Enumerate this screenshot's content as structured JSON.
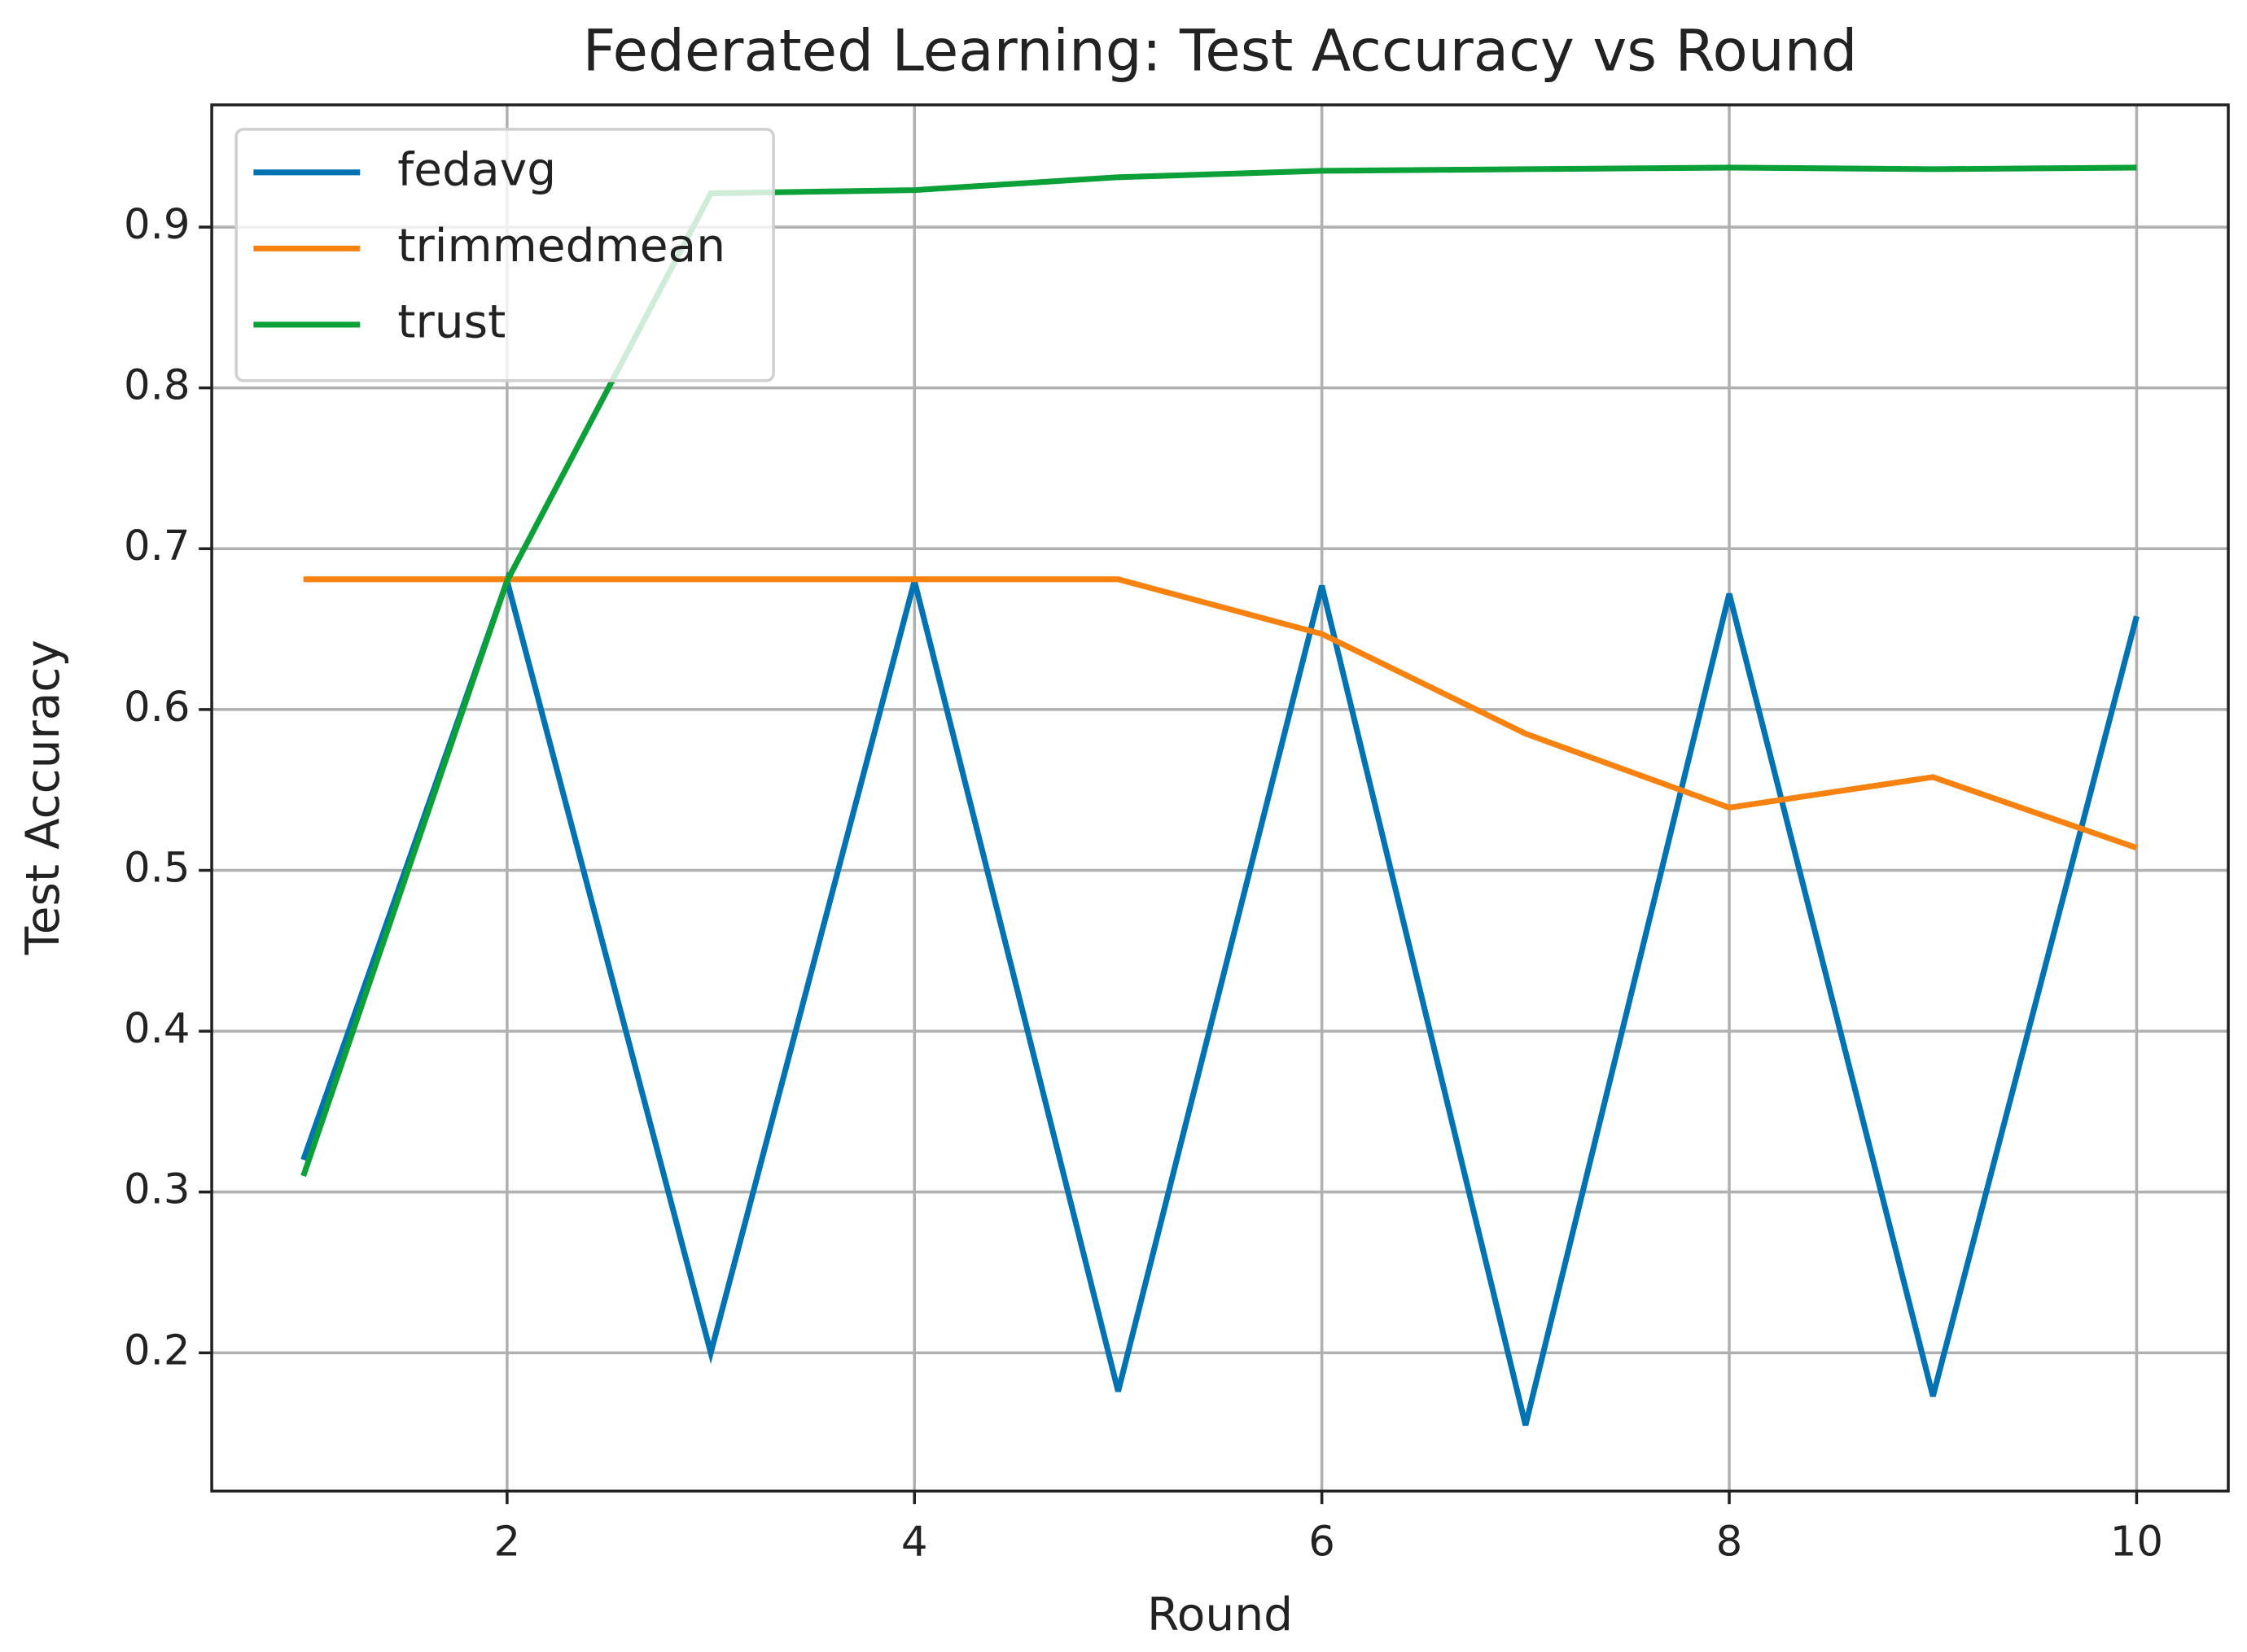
{
  "chart_data": {
    "type": "line",
    "title": "Federated Learning: Test Accuracy vs Round",
    "x_label": "Round",
    "y_label": "Test Accuracy",
    "x": [
      1,
      2,
      3,
      4,
      5,
      6,
      7,
      8,
      9,
      10
    ],
    "series": [
      {
        "name": "fedavg",
        "color": "#0173b2",
        "values": [
          0.32,
          0.68,
          0.2,
          0.68,
          0.176,
          0.677,
          0.155,
          0.672,
          0.173,
          0.658
        ]
      },
      {
        "name": "trimmedmean",
        "color": "#f7820f",
        "values": [
          0.681,
          0.681,
          0.681,
          0.681,
          0.681,
          0.647,
          0.585,
          0.539,
          0.558,
          0.514
        ]
      },
      {
        "name": "trust",
        "color": "#0ca038",
        "values": [
          0.31,
          0.68,
          0.921,
          0.923,
          0.931,
          0.935,
          0.936,
          0.937,
          0.936,
          0.937
        ]
      }
    ],
    "xlim": [
      0.55,
      10.45
    ],
    "ylim": [
      0.114,
      0.976
    ],
    "xticks": [
      2,
      4,
      6,
      8,
      10
    ],
    "yticks": [
      0.2,
      0.3,
      0.4,
      0.5,
      0.6,
      0.7,
      0.8,
      0.9
    ],
    "grid": true,
    "legend": "upper-left"
  }
}
